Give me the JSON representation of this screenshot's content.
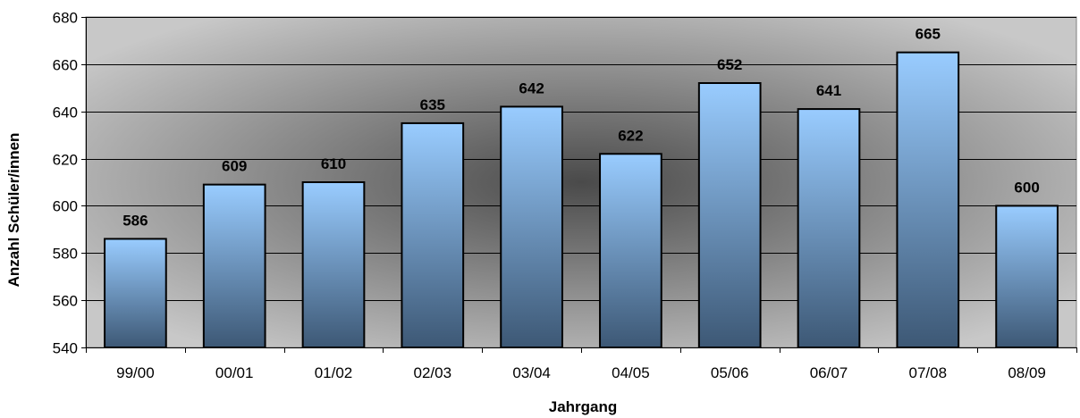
{
  "chart_data": {
    "type": "bar",
    "categories": [
      "99/00",
      "00/01",
      "01/02",
      "02/03",
      "03/04",
      "04/05",
      "05/06",
      "06/07",
      "07/08",
      "08/09"
    ],
    "values": [
      586,
      609,
      610,
      635,
      642,
      622,
      652,
      641,
      665,
      600
    ],
    "xlabel": "Jahrgang",
    "ylabel": "Anzahl Schüler/innen",
    "ylim": [
      540,
      680
    ],
    "yticks": [
      540,
      560,
      580,
      600,
      620,
      640,
      660,
      680
    ],
    "grid": true,
    "data_labels": true,
    "legend": "none",
    "colors": {
      "bar_top": "#99CCFF",
      "bar_bottom": "#3D5875",
      "bar_outline": "#000000",
      "plot_center": "#4A4A4A",
      "plot_edge": "#C8C8C8",
      "gridline": "#000000"
    }
  }
}
